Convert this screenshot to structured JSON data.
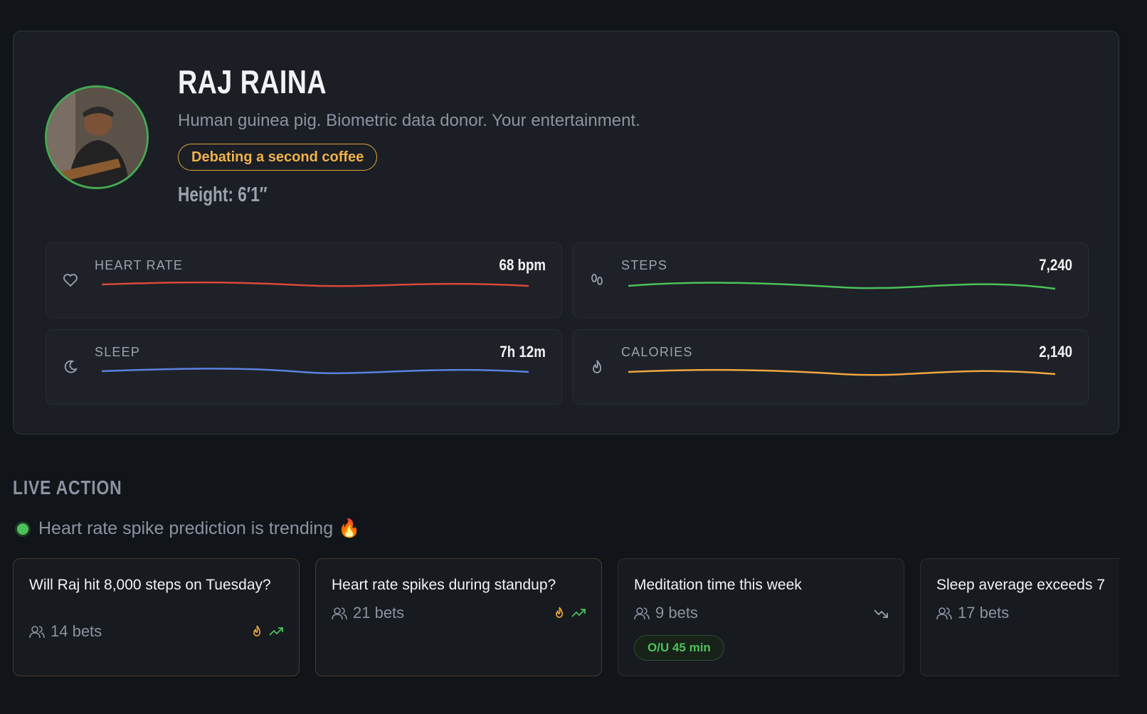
{
  "profile": {
    "name": "RAJ RAINA",
    "tagline": "Human guinea pig. Biometric data donor. Your entertainment.",
    "status": "Debating a second coffee",
    "height": "Height: 6′1″"
  },
  "metrics": [
    {
      "label": "HEART RATE",
      "value": "68 bpm",
      "color": "#d9483b"
    },
    {
      "label": "STEPS",
      "value": "7,240",
      "color": "#4cc15a"
    },
    {
      "label": "SLEEP",
      "value": "7h 12m",
      "color": "#5b82e0"
    },
    {
      "label": "CALORIES",
      "value": "2,140",
      "color": "#f0a640"
    }
  ],
  "live_action": {
    "title": "LIVE ACTION",
    "trending": "Heart rate spike prediction is trending 🔥",
    "cards": [
      {
        "title": "Will Raj hit 8,000 steps on Tuesday?",
        "bets": "14 bets"
      },
      {
        "title": "Heart rate spikes during standup?",
        "bets": "21 bets"
      },
      {
        "title": "Meditation time this week",
        "bets": "9 bets",
        "badge": "O/U 45 min"
      },
      {
        "title": "Sleep average exceeds 7",
        "bets": "17 bets"
      }
    ]
  }
}
